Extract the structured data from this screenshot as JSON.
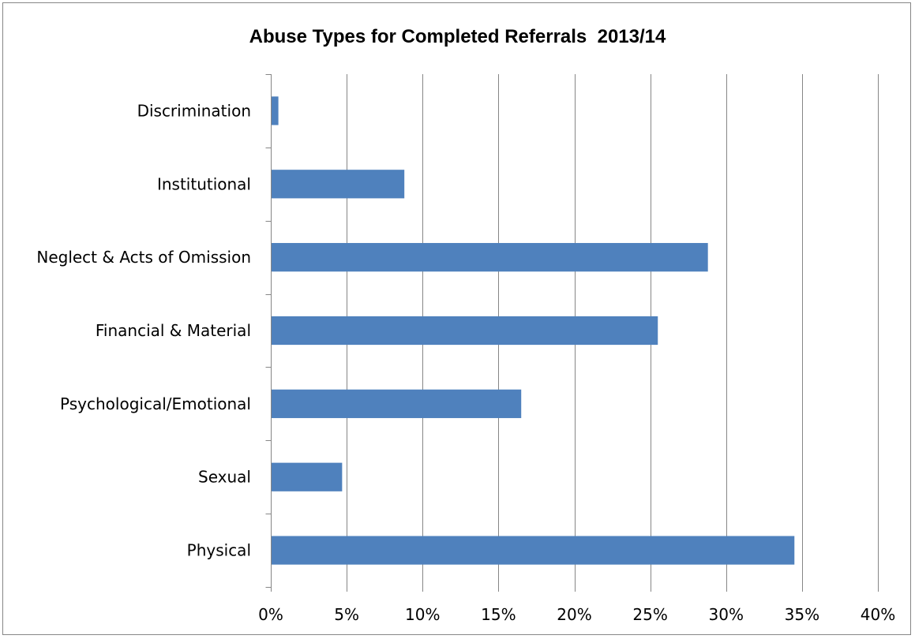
{
  "chart_data": {
    "type": "bar",
    "orientation": "horizontal",
    "title": "Abuse Types for Completed Referrals  2013/14",
    "categories": [
      "Discrimination",
      "Institutional",
      "Neglect & Acts of Omission",
      "Financial & Material",
      "Psychological/Emotional",
      "Sexual",
      "Physical"
    ],
    "values": [
      0.5,
      8.8,
      28.8,
      25.5,
      16.5,
      4.7,
      34.5
    ],
    "xlabel": "",
    "ylabel": "",
    "xlim": [
      0,
      40
    ],
    "x_ticks": [
      0,
      5,
      10,
      15,
      20,
      25,
      30,
      35,
      40
    ],
    "x_tick_labels": [
      "0%",
      "5%",
      "10%",
      "15%",
      "20%",
      "25%",
      "30%",
      "35%",
      "40%"
    ],
    "grid": "vertical",
    "legend": "none",
    "bar_color": "#4F81BD",
    "grid_color": "#868686"
  }
}
